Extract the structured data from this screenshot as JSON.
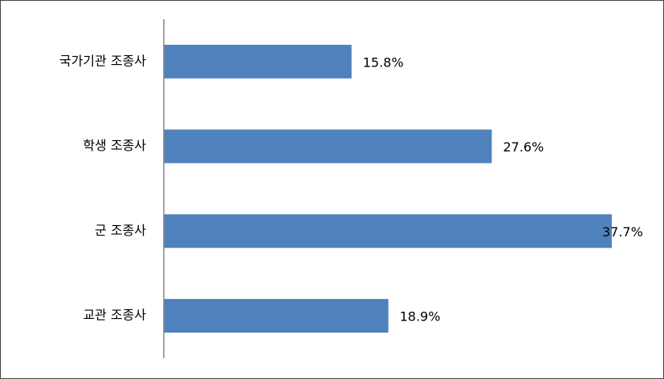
{
  "chart_data": {
    "type": "bar",
    "orientation": "horizontal",
    "categories": [
      "국가기관 조종사",
      "학생 조종사",
      "군 조종사",
      "교관 조종사"
    ],
    "values": [
      15.8,
      27.6,
      37.7,
      18.9
    ],
    "value_labels": [
      "15.8%",
      "27.6%",
      "37.7%",
      "18.9%"
    ],
    "color": "#4f81bd",
    "xlim": [
      0,
      40
    ]
  }
}
